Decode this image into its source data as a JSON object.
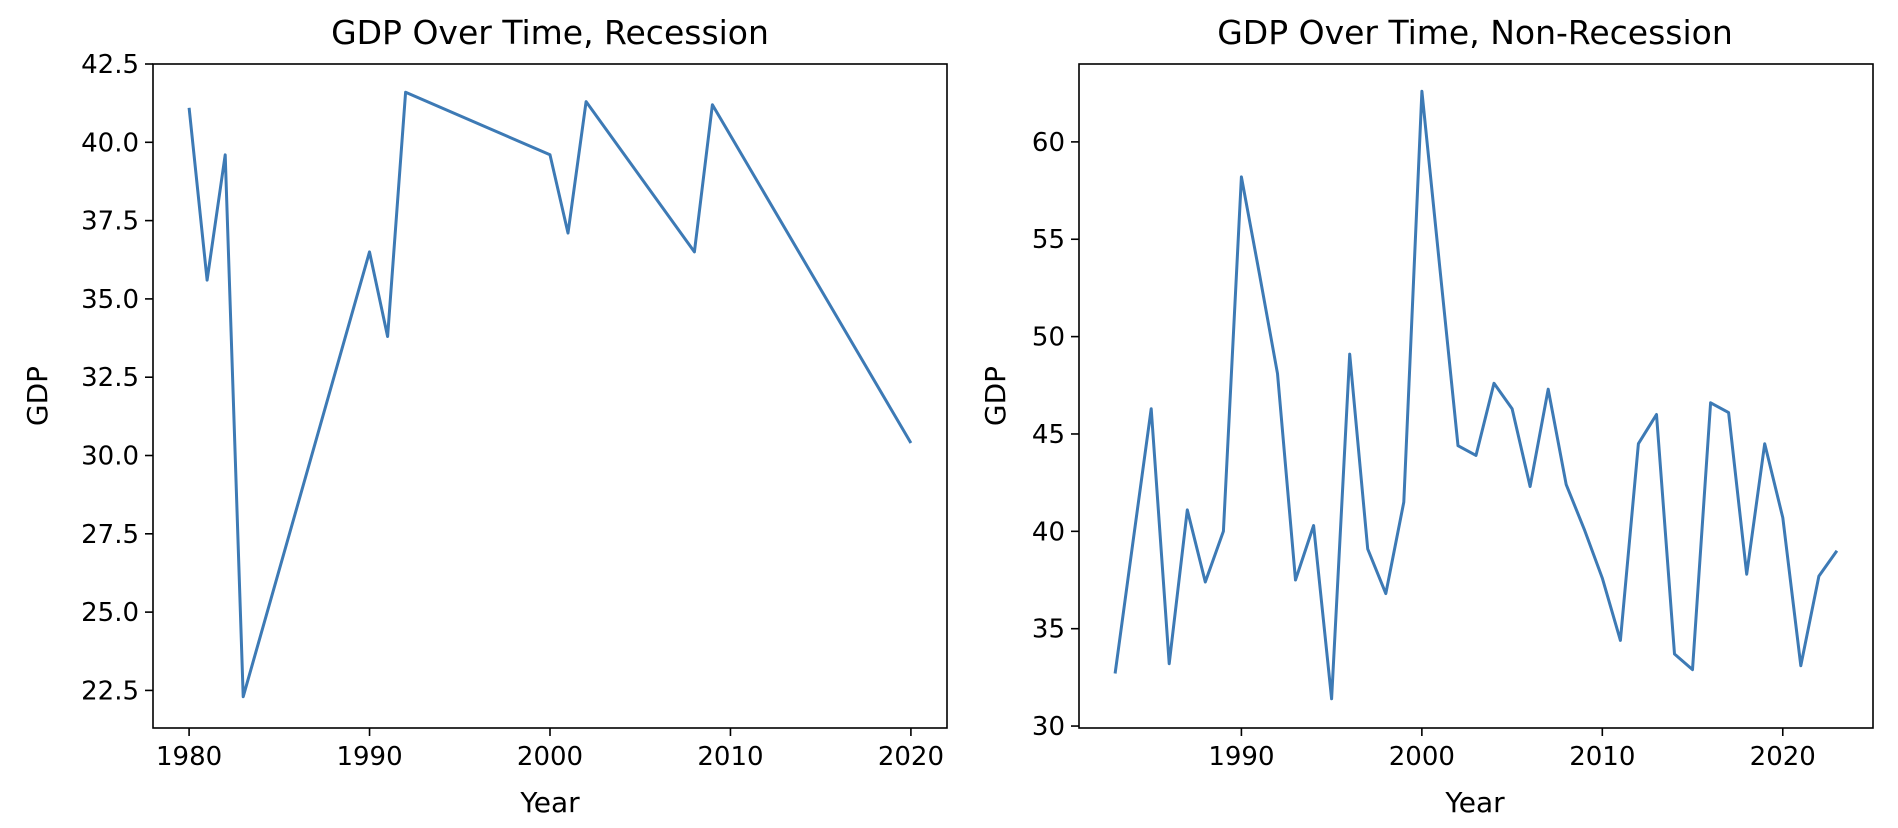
{
  "chart_data": [
    {
      "type": "line",
      "title": "GDP Over Time, Recession",
      "xlabel": "Year",
      "ylabel": "GDP",
      "xlim": [
        1978,
        2022
      ],
      "ylim": [
        21.3,
        42.5
      ],
      "x_ticks": [
        1980,
        1990,
        2000,
        2010,
        2020
      ],
      "x_tick_labels": [
        "1980",
        "1990",
        "2000",
        "2010",
        "2020"
      ],
      "y_ticks": [
        22.5,
        25.0,
        27.5,
        30.0,
        32.5,
        35.0,
        37.5,
        40.0,
        42.5
      ],
      "y_tick_labels": [
        "22.5",
        "25.0",
        "27.5",
        "30.0",
        "32.5",
        "35.0",
        "37.5",
        "40.0",
        "42.5"
      ],
      "grid": false,
      "series": [
        {
          "color": "#3d7ab5",
          "x": [
            1980,
            1981,
            1982,
            1983,
            1990,
            1991,
            1992,
            2000,
            2001,
            2002,
            2008,
            2009,
            2020
          ],
          "y": [
            41.1,
            35.6,
            39.6,
            22.3,
            36.5,
            33.8,
            41.6,
            39.6,
            37.1,
            41.3,
            36.5,
            41.2,
            30.4
          ]
        }
      ]
    },
    {
      "type": "line",
      "title": "GDP Over Time, Non-Recession",
      "xlabel": "Year",
      "ylabel": "GDP",
      "xlim": [
        1981,
        2025
      ],
      "ylim": [
        29.9,
        64.0
      ],
      "x_ticks": [
        1990,
        2000,
        2010,
        2020
      ],
      "x_tick_labels": [
        "1990",
        "2000",
        "2010",
        "2020"
      ],
      "y_ticks": [
        30,
        35,
        40,
        45,
        50,
        55,
        60
      ],
      "y_tick_labels": [
        "30",
        "35",
        "40",
        "45",
        "50",
        "55",
        "60"
      ],
      "grid": false,
      "series": [
        {
          "color": "#3d7ab5",
          "x": [
            1983,
            1984,
            1985,
            1986,
            1987,
            1988,
            1989,
            1990,
            1991,
            1992,
            1993,
            1994,
            1995,
            1996,
            1997,
            1998,
            1999,
            2000,
            2001,
            2002,
            2003,
            2004,
            2005,
            2006,
            2007,
            2008,
            2009,
            2010,
            2011,
            2012,
            2013,
            2014,
            2015,
            2016,
            2017,
            2018,
            2019,
            2020,
            2021,
            2022,
            2023
          ],
          "y": [
            32.7,
            39.5,
            46.3,
            33.2,
            41.1,
            37.4,
            40.0,
            58.2,
            53.2,
            48.1,
            37.5,
            40.3,
            31.4,
            49.1,
            39.1,
            36.8,
            41.5,
            62.6,
            53.5,
            44.4,
            43.9,
            47.6,
            46.3,
            42.3,
            47.3,
            42.4,
            40.1,
            37.6,
            34.4,
            44.5,
            46.0,
            33.7,
            32.9,
            46.6,
            46.1,
            37.8,
            44.5,
            40.7,
            33.1,
            37.7,
            39.0
          ]
        }
      ]
    }
  ]
}
